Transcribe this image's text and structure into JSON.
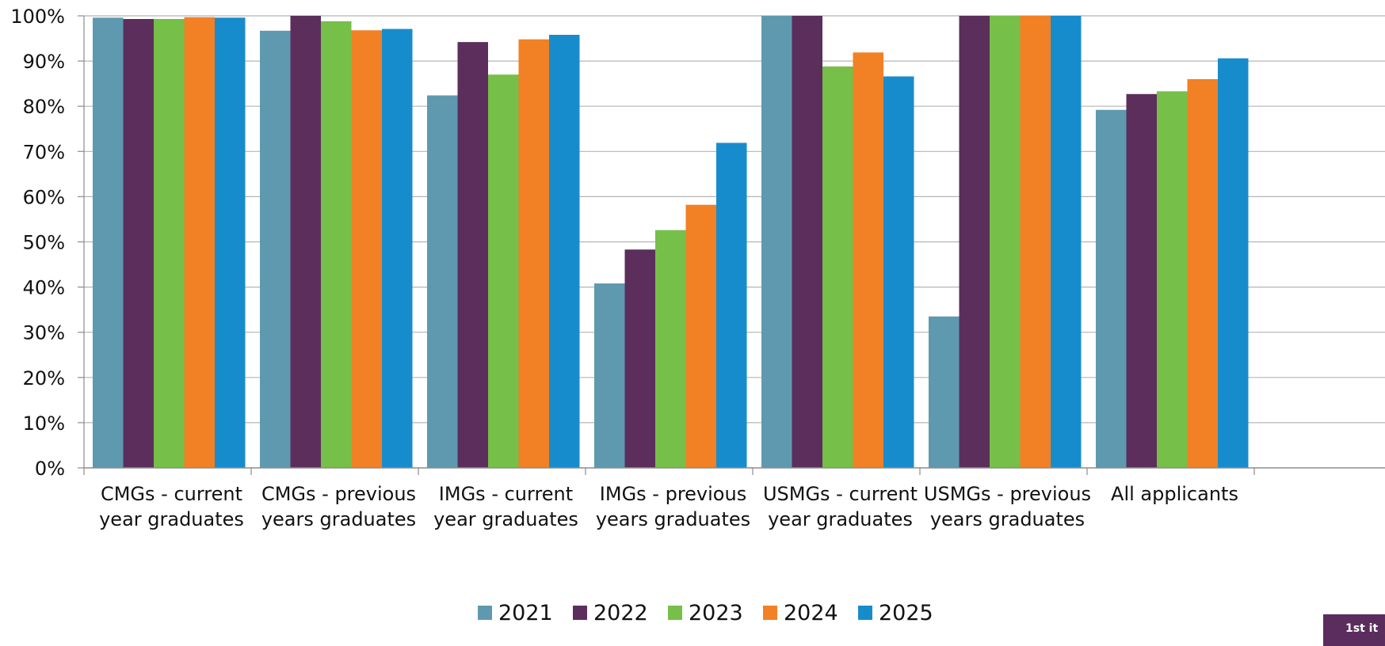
{
  "chart_data": {
    "type": "bar",
    "categories": [
      [
        "CMGs - current",
        "year graduates"
      ],
      [
        "CMGs - previous",
        "years graduates"
      ],
      [
        "IMGs - current",
        "year graduates"
      ],
      [
        "IMGs - previous",
        "years graduates"
      ],
      [
        "USMGs - current",
        "year graduates"
      ],
      [
        "USMGs - previous",
        "years graduates"
      ],
      [
        "All applicants",
        ""
      ]
    ],
    "series": [
      {
        "name": "2021",
        "color": "#5f99b0",
        "values": [
          99.6,
          96.7,
          82.4,
          40.8,
          100,
          33.5,
          79.2
        ]
      },
      {
        "name": "2022",
        "color": "#5b2e5c",
        "values": [
          99.3,
          100,
          94.2,
          48.3,
          100,
          100,
          82.7
        ]
      },
      {
        "name": "2023",
        "color": "#76bf48",
        "values": [
          99.3,
          98.8,
          87.0,
          52.6,
          88.8,
          100,
          83.3
        ]
      },
      {
        "name": "2024",
        "color": "#f28024",
        "values": [
          99.7,
          96.8,
          94.8,
          58.2,
          91.9,
          100,
          86.0
        ]
      },
      {
        "name": "2025",
        "color": "#178ccc",
        "values": [
          99.6,
          97.1,
          95.8,
          71.9,
          86.6,
          100,
          90.6
        ]
      }
    ],
    "yticks": [
      "0%",
      "10%",
      "20%",
      "30%",
      "40%",
      "50%",
      "60%",
      "70%",
      "80%",
      "90%",
      "100%"
    ],
    "ylim": [
      0,
      100
    ],
    "grid": true,
    "legend": "bottom",
    "title": "",
    "xlabel": "",
    "ylabel": ""
  },
  "badge": {
    "text": "1st it"
  }
}
